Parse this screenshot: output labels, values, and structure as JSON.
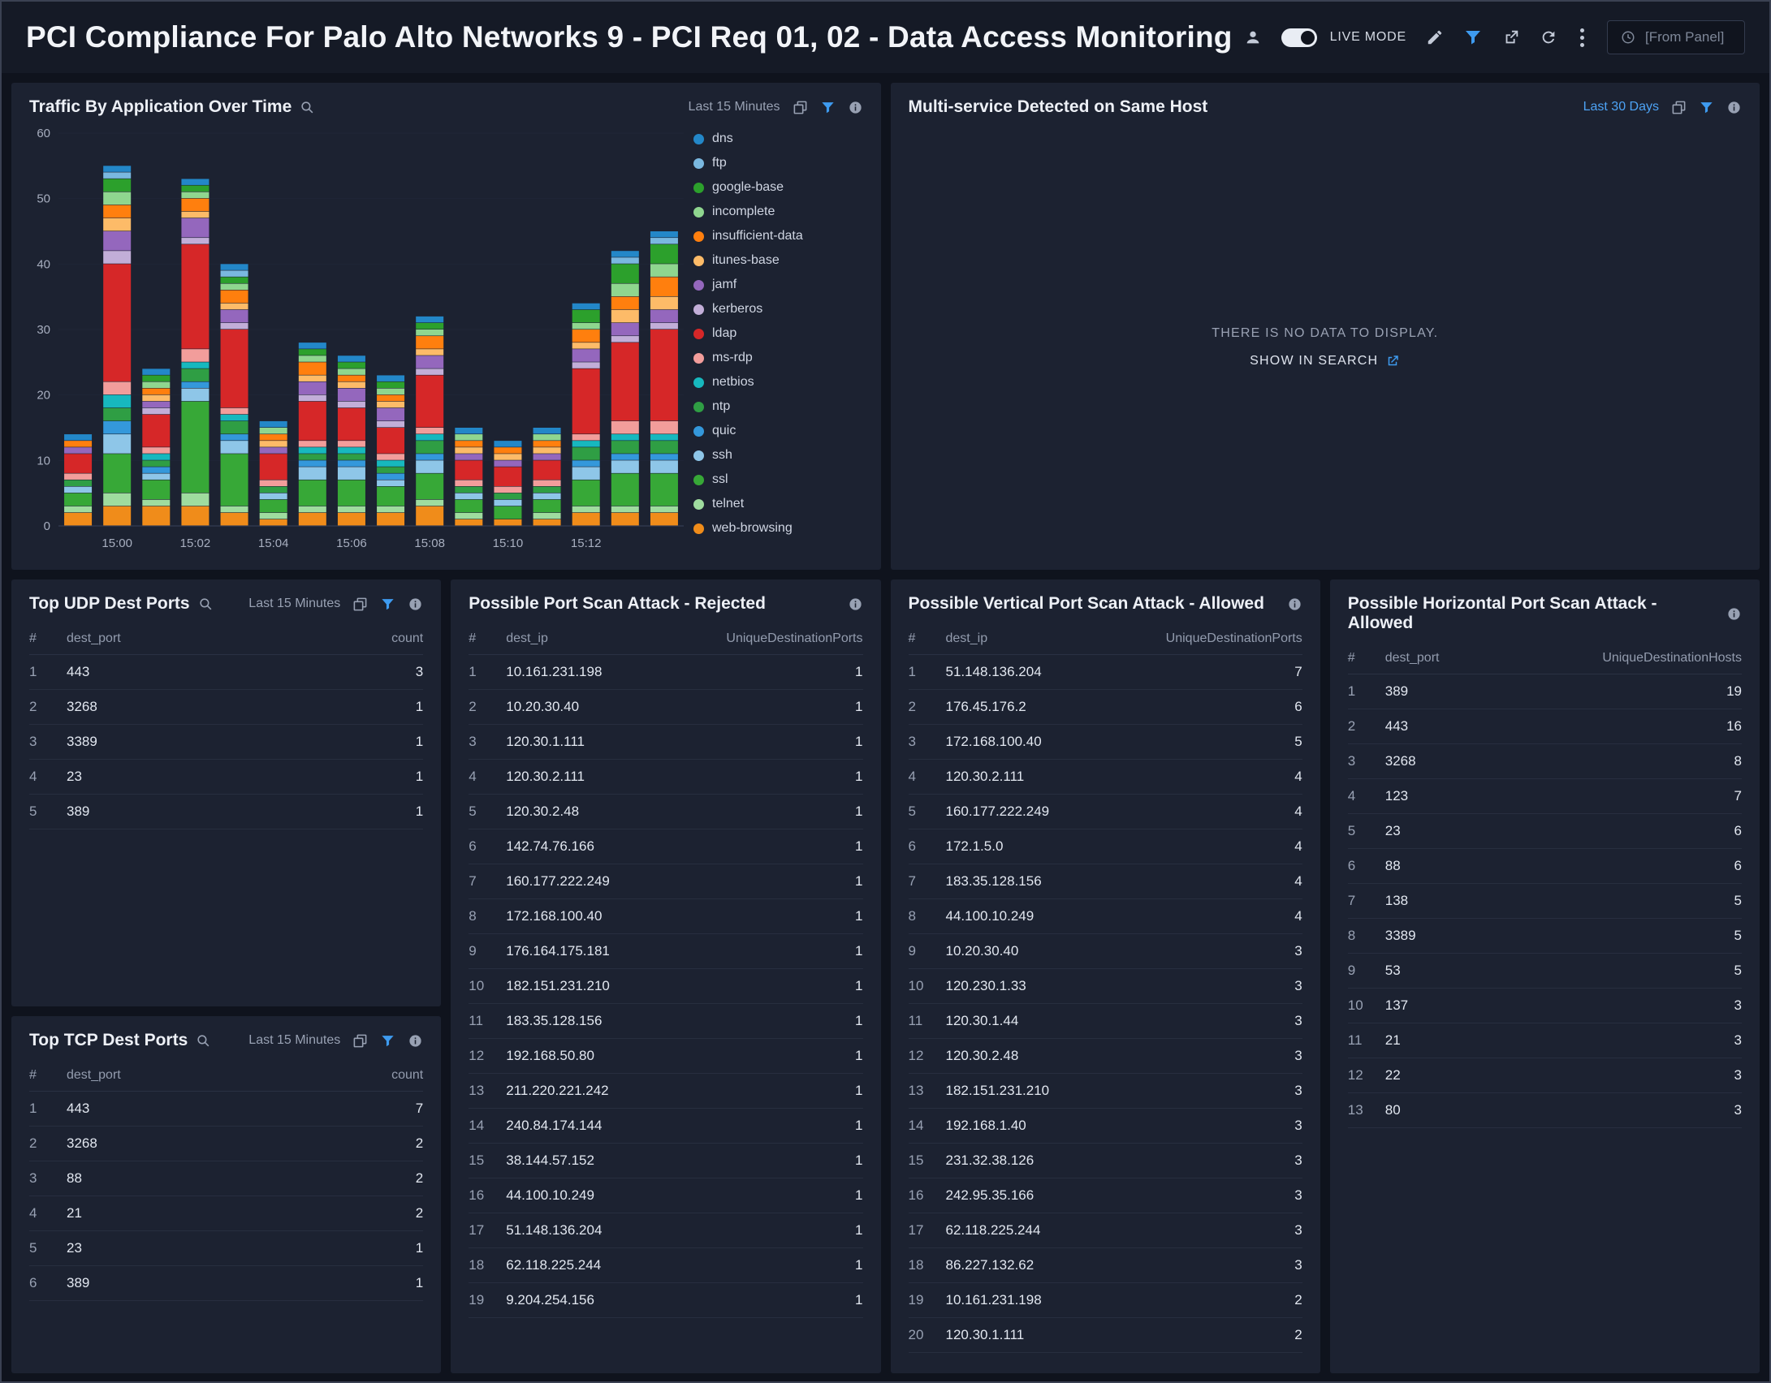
{
  "header": {
    "title": "PCI Compliance For Palo Alto Networks 9 - PCI Req 01, 02 - Data Access Monitoring",
    "live_mode_label": "LIVE MODE",
    "from_panel_label": "[From Panel]"
  },
  "colors": {
    "accent_blue": "#3e9bf0",
    "link_blue": "#4da3f5",
    "panel_bg": "#1c2231",
    "page_bg": "#0f131d"
  },
  "panels": {
    "traffic": {
      "title": "Traffic By Application Over Time",
      "time_range": "Last 15 Minutes"
    },
    "multi_service": {
      "title": "Multi-service Detected on Same Host",
      "time_range": "Last 30 Days",
      "no_data_message": "THERE IS NO DATA TO DISPLAY.",
      "show_in_search": "SHOW IN SEARCH"
    },
    "top_udp": {
      "title": "Top UDP Dest Ports",
      "time_range": "Last 15 Minutes",
      "columns": [
        "#",
        "dest_port",
        "count"
      ],
      "rows": [
        [
          "1",
          "443",
          "3"
        ],
        [
          "2",
          "3268",
          "1"
        ],
        [
          "3",
          "3389",
          "1"
        ],
        [
          "4",
          "23",
          "1"
        ],
        [
          "5",
          "389",
          "1"
        ]
      ]
    },
    "top_tcp": {
      "title": "Top TCP Dest Ports",
      "time_range": "Last 15 Minutes",
      "columns": [
        "#",
        "dest_port",
        "count"
      ],
      "rows": [
        [
          "1",
          "443",
          "7"
        ],
        [
          "2",
          "3268",
          "2"
        ],
        [
          "3",
          "88",
          "2"
        ],
        [
          "4",
          "21",
          "2"
        ],
        [
          "5",
          "23",
          "1"
        ],
        [
          "6",
          "389",
          "1"
        ]
      ]
    },
    "rejected": {
      "title": "Possible Port Scan Attack - Rejected",
      "columns": [
        "#",
        "dest_ip",
        "UniqueDestinationPorts"
      ],
      "rows": [
        [
          "1",
          "10.161.231.198",
          "1"
        ],
        [
          "2",
          "10.20.30.40",
          "1"
        ],
        [
          "3",
          "120.30.1.111",
          "1"
        ],
        [
          "4",
          "120.30.2.111",
          "1"
        ],
        [
          "5",
          "120.30.2.48",
          "1"
        ],
        [
          "6",
          "142.74.76.166",
          "1"
        ],
        [
          "7",
          "160.177.222.249",
          "1"
        ],
        [
          "8",
          "172.168.100.40",
          "1"
        ],
        [
          "9",
          "176.164.175.181",
          "1"
        ],
        [
          "10",
          "182.151.231.210",
          "1"
        ],
        [
          "11",
          "183.35.128.156",
          "1"
        ],
        [
          "12",
          "192.168.50.80",
          "1"
        ],
        [
          "13",
          "211.220.221.242",
          "1"
        ],
        [
          "14",
          "240.84.174.144",
          "1"
        ],
        [
          "15",
          "38.144.57.152",
          "1"
        ],
        [
          "16",
          "44.100.10.249",
          "1"
        ],
        [
          "17",
          "51.148.136.204",
          "1"
        ],
        [
          "18",
          "62.118.225.244",
          "1"
        ],
        [
          "19",
          "9.204.254.156",
          "1"
        ]
      ]
    },
    "vertical": {
      "title": "Possible Vertical Port Scan Attack - Allowed",
      "columns": [
        "#",
        "dest_ip",
        "UniqueDestinationPorts"
      ],
      "rows": [
        [
          "1",
          "51.148.136.204",
          "7"
        ],
        [
          "2",
          "176.45.176.2",
          "6"
        ],
        [
          "3",
          "172.168.100.40",
          "5"
        ],
        [
          "4",
          "120.30.2.111",
          "4"
        ],
        [
          "5",
          "160.177.222.249",
          "4"
        ],
        [
          "6",
          "172.1.5.0",
          "4"
        ],
        [
          "7",
          "183.35.128.156",
          "4"
        ],
        [
          "8",
          "44.100.10.249",
          "4"
        ],
        [
          "9",
          "10.20.30.40",
          "3"
        ],
        [
          "10",
          "120.230.1.33",
          "3"
        ],
        [
          "11",
          "120.30.1.44",
          "3"
        ],
        [
          "12",
          "120.30.2.48",
          "3"
        ],
        [
          "13",
          "182.151.231.210",
          "3"
        ],
        [
          "14",
          "192.168.1.40",
          "3"
        ],
        [
          "15",
          "231.32.38.126",
          "3"
        ],
        [
          "16",
          "242.95.35.166",
          "3"
        ],
        [
          "17",
          "62.118.225.244",
          "3"
        ],
        [
          "18",
          "86.227.132.62",
          "3"
        ],
        [
          "19",
          "10.161.231.198",
          "2"
        ],
        [
          "20",
          "120.30.1.111",
          "2"
        ]
      ]
    },
    "horizontal": {
      "title": "Possible Horizontal Port Scan Attack - Allowed",
      "columns": [
        "#",
        "dest_port",
        "UniqueDestinationHosts"
      ],
      "rows": [
        [
          "1",
          "389",
          "19"
        ],
        [
          "2",
          "443",
          "16"
        ],
        [
          "3",
          "3268",
          "8"
        ],
        [
          "4",
          "123",
          "7"
        ],
        [
          "5",
          "23",
          "6"
        ],
        [
          "6",
          "88",
          "6"
        ],
        [
          "7",
          "138",
          "5"
        ],
        [
          "8",
          "3389",
          "5"
        ],
        [
          "9",
          "53",
          "5"
        ],
        [
          "10",
          "137",
          "3"
        ],
        [
          "11",
          "21",
          "3"
        ],
        [
          "12",
          "22",
          "3"
        ],
        [
          "13",
          "80",
          "3"
        ]
      ]
    }
  },
  "chart_data": {
    "type": "bar",
    "stacked": true,
    "title": "Traffic By Application Over Time",
    "xlabel": "",
    "ylabel": "",
    "ylim": [
      0,
      60
    ],
    "yticks": [
      0,
      10,
      20,
      30,
      40,
      50,
      60
    ],
    "grid": false,
    "legend_position": "right",
    "x": [
      "14:59",
      "15:00",
      "15:01",
      "15:02",
      "15:03",
      "15:04",
      "15:05",
      "15:06",
      "15:07",
      "15:08",
      "15:09",
      "15:10",
      "15:11",
      "15:12",
      "15:13",
      "15:14"
    ],
    "x_tick_labels": [
      "15:00",
      "15:02",
      "15:04",
      "15:06",
      "15:08",
      "15:10",
      "15:12"
    ],
    "stack_order": "reverse_of_legend",
    "series": [
      {
        "name": "dns",
        "color": "#2387c8",
        "values": [
          1,
          1,
          1,
          1,
          1,
          1,
          1,
          1,
          1,
          1,
          1,
          1,
          1,
          1,
          1,
          1
        ]
      },
      {
        "name": "ftp",
        "color": "#7ab8e0",
        "values": [
          0,
          1,
          0,
          0,
          1,
          0,
          0,
          0,
          0,
          0,
          0,
          0,
          0,
          0,
          1,
          1
        ]
      },
      {
        "name": "google-base",
        "color": "#2ca02c",
        "values": [
          0,
          2,
          1,
          1,
          1,
          0,
          1,
          1,
          1,
          1,
          0,
          0,
          0,
          2,
          3,
          3
        ]
      },
      {
        "name": "incomplete",
        "color": "#8fd68f",
        "values": [
          0,
          2,
          1,
          1,
          1,
          1,
          1,
          1,
          1,
          1,
          1,
          0,
          1,
          1,
          2,
          2
        ]
      },
      {
        "name": "insufficient-data",
        "color": "#ff7f0e",
        "values": [
          1,
          2,
          1,
          2,
          2,
          1,
          2,
          1,
          1,
          2,
          1,
          1,
          1,
          2,
          2,
          3
        ]
      },
      {
        "name": "itunes-base",
        "color": "#fdbb68",
        "values": [
          0,
          2,
          1,
          1,
          1,
          1,
          1,
          1,
          1,
          1,
          1,
          1,
          1,
          1,
          2,
          2
        ]
      },
      {
        "name": "jamf",
        "color": "#9467bd",
        "values": [
          1,
          3,
          1,
          3,
          2,
          1,
          2,
          2,
          2,
          2,
          1,
          1,
          1,
          2,
          2,
          2
        ]
      },
      {
        "name": "kerberos",
        "color": "#c2aed8",
        "values": [
          0,
          2,
          1,
          1,
          1,
          0,
          1,
          1,
          1,
          1,
          0,
          0,
          0,
          1,
          1,
          1
        ]
      },
      {
        "name": "ldap",
        "color": "#d62728",
        "values": [
          3,
          18,
          5,
          16,
          12,
          4,
          6,
          5,
          4,
          8,
          3,
          3,
          3,
          10,
          12,
          14
        ]
      },
      {
        "name": "ms-rdp",
        "color": "#f29d9b",
        "values": [
          1,
          2,
          1,
          2,
          1,
          1,
          1,
          1,
          1,
          1,
          1,
          1,
          1,
          1,
          2,
          2
        ]
      },
      {
        "name": "netbios",
        "color": "#17b8be",
        "values": [
          0,
          2,
          1,
          1,
          1,
          0,
          1,
          1,
          1,
          1,
          0,
          0,
          0,
          1,
          1,
          1
        ]
      },
      {
        "name": "ntp",
        "color": "#2f9e44",
        "values": [
          1,
          2,
          1,
          2,
          2,
          1,
          1,
          1,
          1,
          2,
          1,
          1,
          1,
          2,
          2,
          2
        ]
      },
      {
        "name": "quic",
        "color": "#3498db",
        "values": [
          0,
          2,
          1,
          1,
          1,
          0,
          1,
          1,
          1,
          1,
          0,
          0,
          0,
          1,
          1,
          1
        ]
      },
      {
        "name": "ssh",
        "color": "#8ec6e8",
        "values": [
          1,
          3,
          1,
          2,
          2,
          1,
          2,
          2,
          1,
          2,
          1,
          1,
          1,
          2,
          2,
          2
        ]
      },
      {
        "name": "ssl",
        "color": "#37a837",
        "values": [
          2,
          6,
          3,
          14,
          8,
          2,
          4,
          4,
          3,
          4,
          2,
          2,
          2,
          4,
          5,
          5
        ]
      },
      {
        "name": "telnet",
        "color": "#9fdc9f",
        "values": [
          1,
          2,
          1,
          2,
          1,
          1,
          1,
          1,
          1,
          1,
          1,
          0,
          1,
          1,
          1,
          1
        ]
      },
      {
        "name": "web-browsing",
        "color": "#f08c1a",
        "values": [
          2,
          3,
          3,
          3,
          2,
          1,
          2,
          2,
          2,
          3,
          1,
          1,
          1,
          2,
          2,
          2
        ]
      }
    ]
  }
}
